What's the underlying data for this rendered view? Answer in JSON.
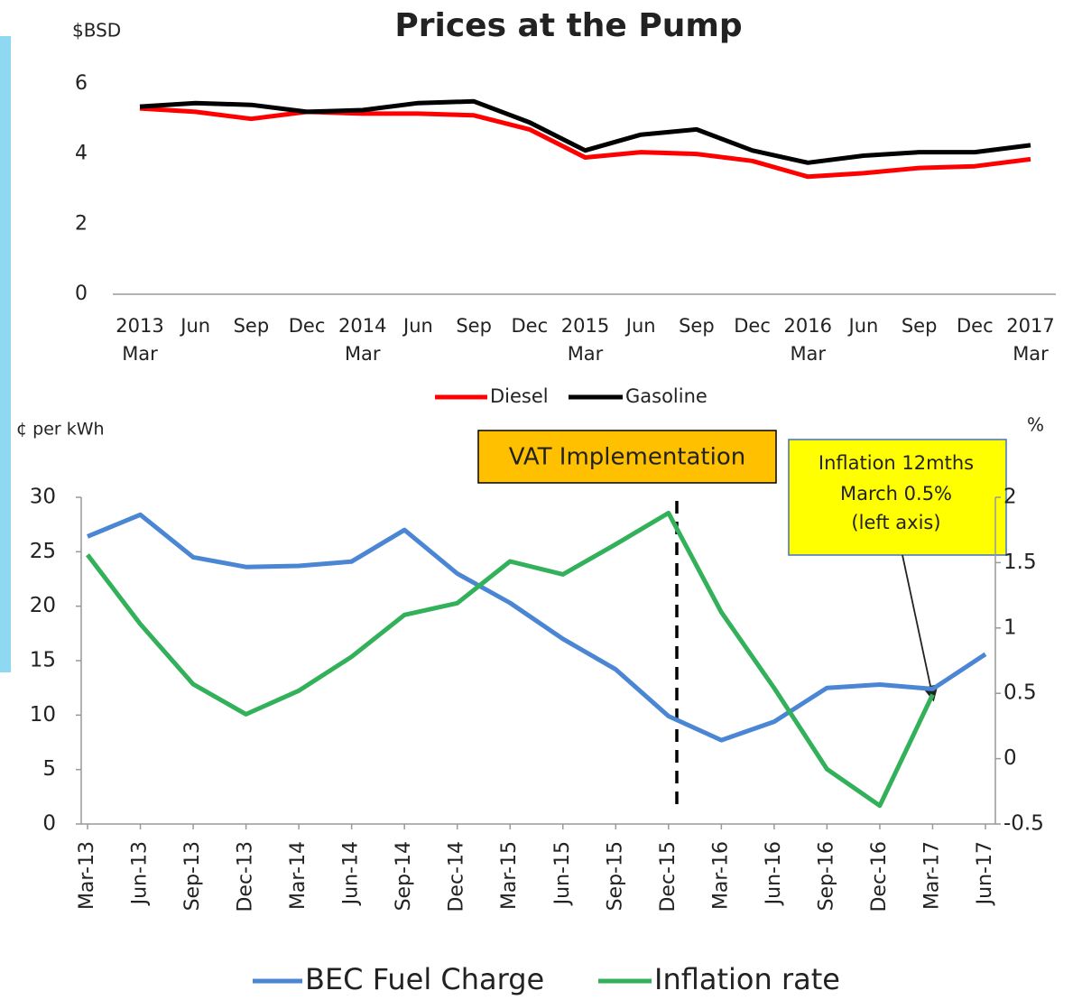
{
  "chart_data": [
    {
      "type": "line",
      "title": "Prices at the Pump",
      "ylabel": "$BSD",
      "categories": [
        [
          "2013",
          "Mar"
        ],
        [
          "Jun"
        ],
        [
          "Sep"
        ],
        [
          "Dec"
        ],
        [
          "2014",
          "Mar"
        ],
        [
          "Jun"
        ],
        [
          "Sep"
        ],
        [
          "Dec"
        ],
        [
          "2015",
          "Mar"
        ],
        [
          "Jun"
        ],
        [
          "Sep"
        ],
        [
          "Dec"
        ],
        [
          "2016",
          "Mar"
        ],
        [
          "Jun"
        ],
        [
          "Sep"
        ],
        [
          "Dec"
        ],
        [
          "2017",
          "Mar"
        ]
      ],
      "series": [
        {
          "name": "Diesel",
          "color": "#ff0000",
          "values": [
            5.3,
            5.2,
            5.0,
            5.2,
            5.15,
            5.15,
            5.1,
            4.7,
            3.9,
            4.05,
            4.0,
            3.8,
            3.35,
            3.45,
            3.6,
            3.65,
            3.85
          ]
        },
        {
          "name": "Gasoline",
          "color": "#000000",
          "values": [
            5.35,
            5.45,
            5.4,
            5.2,
            5.25,
            5.45,
            5.5,
            4.9,
            4.1,
            4.55,
            4.7,
            4.1,
            3.75,
            3.95,
            4.05,
            4.05,
            4.25
          ]
        }
      ],
      "ylim": [
        0,
        7
      ],
      "yticks": [
        0,
        2,
        4,
        6
      ],
      "grid": false,
      "legend": "bottom"
    },
    {
      "type": "line",
      "ylabel": "¢ per kWh",
      "y2label": "%",
      "categories": [
        "Mar-13",
        "Jun-13",
        "Sep-13",
        "Dec-13",
        "Mar-14",
        "Jun-14",
        "Sep-14",
        "Dec-14",
        "Mar-15",
        "Jun-15",
        "Sep-15",
        "Dec-15",
        "Mar-16",
        "Jun-16",
        "Sep-16",
        "Dec-16",
        "Mar-17",
        "Jun-17"
      ],
      "series": [
        {
          "name": "BEC Fuel Charge",
          "color": "#4a86d4",
          "values": [
            26.4,
            28.4,
            24.5,
            23.6,
            23.7,
            24.1,
            27,
            23,
            20.3,
            17,
            14.2,
            9.9,
            7.7,
            9.4,
            12.5,
            12.8,
            12.4,
            15.6
          ]
        },
        {
          "name": "Inflation rate",
          "color": "#33b15a",
          "axis": "y2",
          "values": [
            1.56,
            1.03,
            0.57,
            0.34,
            0.52,
            0.78,
            1.1,
            1.19,
            1.51,
            1.41,
            1.64,
            1.88,
            1.12,
            0.54,
            -0.08,
            -0.36,
            0.49,
            null
          ]
        }
      ],
      "ylim": [
        0,
        30
      ],
      "yticks": [
        0,
        5,
        10,
        15,
        20,
        25,
        30
      ],
      "y2lim": [
        -0.5,
        2
      ],
      "y2ticks": [
        -0.5,
        0,
        0.5,
        1,
        1.5,
        2
      ],
      "grid": false,
      "legend": "bottom",
      "annotations": [
        [
          "VAT Implementation"
        ],
        [
          "Inflation 12mths",
          "March 0.5%",
          "(left axis)"
        ]
      ]
    }
  ]
}
